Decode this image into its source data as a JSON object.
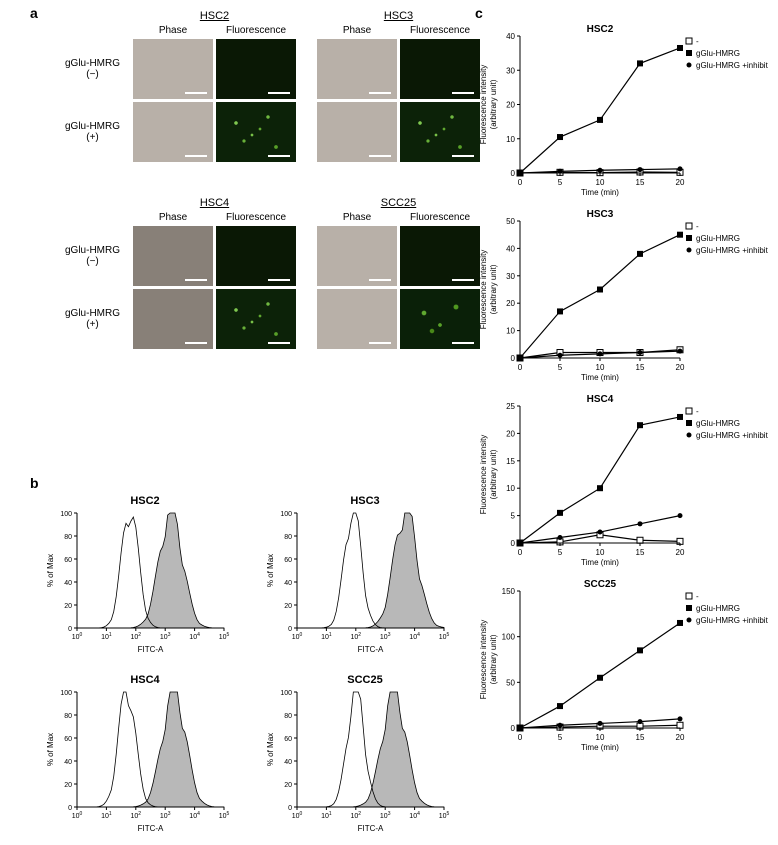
{
  "panel_a": {
    "label": "a",
    "blocks": [
      {
        "cell_lines": [
          "HSC2",
          "HSC3"
        ],
        "col_headers": [
          "Phase",
          "Fluorescence",
          "Phase",
          "Fluorescence"
        ],
        "row_labels": [
          "gGlu-HMRG\n(−)",
          "gGlu-HMRG\n(+)"
        ]
      },
      {
        "cell_lines": [
          "HSC4",
          "SCC25"
        ],
        "col_headers": [
          "Phase",
          "Fluorescence",
          "Phase",
          "Fluorescence"
        ],
        "row_labels": [
          "gGlu-HMRG\n(−)",
          "gGlu-HMRG\n(+)"
        ]
      }
    ]
  },
  "panel_b": {
    "label": "b",
    "plots": [
      {
        "title": "HSC2",
        "xlabel": "FITC-A",
        "ylabel": "% of Max",
        "xlog_ticks": [
          0,
          1,
          2,
          3,
          4,
          5
        ],
        "filled_peak_x": 3.2,
        "open_peak_x": 1.8
      },
      {
        "title": "HSC3",
        "xlabel": "FITC-A",
        "ylabel": "% of Max",
        "xlog_ticks": [
          0,
          1,
          2,
          3,
          4,
          5
        ],
        "filled_peak_x": 3.7,
        "open_peak_x": 1.9
      },
      {
        "title": "HSC4",
        "xlabel": "FITC-A",
        "ylabel": "% of Max",
        "xlog_ticks": [
          0,
          1,
          2,
          3,
          4,
          5
        ],
        "filled_peak_x": 3.3,
        "open_peak_x": 1.7
      },
      {
        "title": "SCC25",
        "xlabel": "FITC-A",
        "ylabel": "% of Max",
        "xlog_ticks": [
          0,
          1,
          2,
          3,
          4,
          5
        ],
        "filled_peak_x": 3.3,
        "open_peak_x": 2.0
      }
    ],
    "style": {
      "fill_color": "#b8b8b8",
      "line_color": "#000000",
      "axis_color": "#000000",
      "fontsize_label": 8,
      "fontsize_tick": 7
    }
  },
  "panel_c": {
    "label": "c",
    "legend": [
      "-",
      "gGlu-HMRG",
      "gGlu-HMRG +inhibitor"
    ],
    "xlabel": "Time (min)",
    "ylabel": "Fluorescence intensity\n(arbitrary unit)",
    "xvalues": [
      0,
      5,
      10,
      15,
      20
    ],
    "charts": [
      {
        "title": "HSC2",
        "ylim": [
          0,
          40
        ],
        "ytick_step": 10,
        "series": {
          "none": [
            0,
            0.2,
            0.1,
            0.3,
            0.2
          ],
          "hmrg": [
            0,
            10.5,
            15.5,
            32,
            36.5
          ],
          "inhibitor": [
            0,
            0.5,
            0.8,
            1.0,
            1.2
          ]
        }
      },
      {
        "title": "HSC3",
        "ylim": [
          0,
          50
        ],
        "ytick_step": 10,
        "series": {
          "none": [
            0,
            2,
            2,
            2,
            3
          ],
          "hmrg": [
            0,
            17,
            25,
            38,
            45
          ],
          "inhibitor": [
            0,
            1,
            1.5,
            2,
            2.5
          ]
        }
      },
      {
        "title": "HSC4",
        "ylim": [
          0,
          25
        ],
        "ytick_step": 5,
        "series": {
          "none": [
            0,
            0.2,
            1.5,
            0.5,
            0.3
          ],
          "hmrg": [
            0,
            5.5,
            10,
            21.5,
            23
          ],
          "inhibitor": [
            0,
            1,
            2,
            3.5,
            5
          ]
        }
      },
      {
        "title": "SCC25",
        "ylim": [
          0,
          150
        ],
        "ytick_step": 50,
        "series": {
          "none": [
            0,
            1,
            2,
            2,
            3
          ],
          "hmrg": [
            0,
            24,
            55,
            85,
            115
          ],
          "inhibitor": [
            0,
            3,
            5,
            7,
            10
          ]
        }
      }
    ],
    "style": {
      "axis_color": "#000000",
      "line_color": "#000000",
      "marker_open": "square-open",
      "marker_filled": "square-filled",
      "marker_circle": "circle-filled",
      "fontsize_title": 10,
      "fontsize_label": 8,
      "fontsize_tick": 8,
      "fontsize_legend": 8
    }
  },
  "colors": {
    "background": "#ffffff",
    "text": "#000000"
  }
}
